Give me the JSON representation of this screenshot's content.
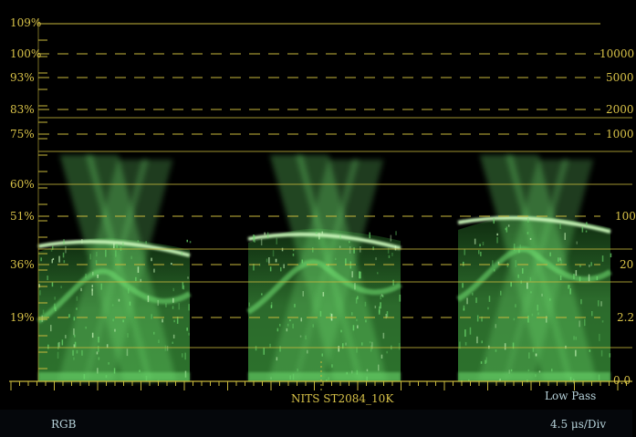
{
  "scope": {
    "left_labels": [
      "109%",
      "100%",
      "93%",
      "83%",
      "75%",
      "60%",
      "51%",
      "36%",
      "19%"
    ],
    "right_labels": [
      "10000",
      "5000",
      "2000",
      "1000",
      "100",
      "20",
      "2.2",
      "0.0"
    ],
    "center_label": "NITS  ST2084_10K",
    "filter_label": "Low Pass",
    "mode_label": "RGB",
    "timebase_label": "4.5 μs/Div"
  },
  "colors": {
    "graticule": "#c8b83c",
    "trace": "#6cd96c",
    "trace_bright": "#c8f5b8",
    "status_text": "#b8d4dc",
    "background": "#000000"
  }
}
